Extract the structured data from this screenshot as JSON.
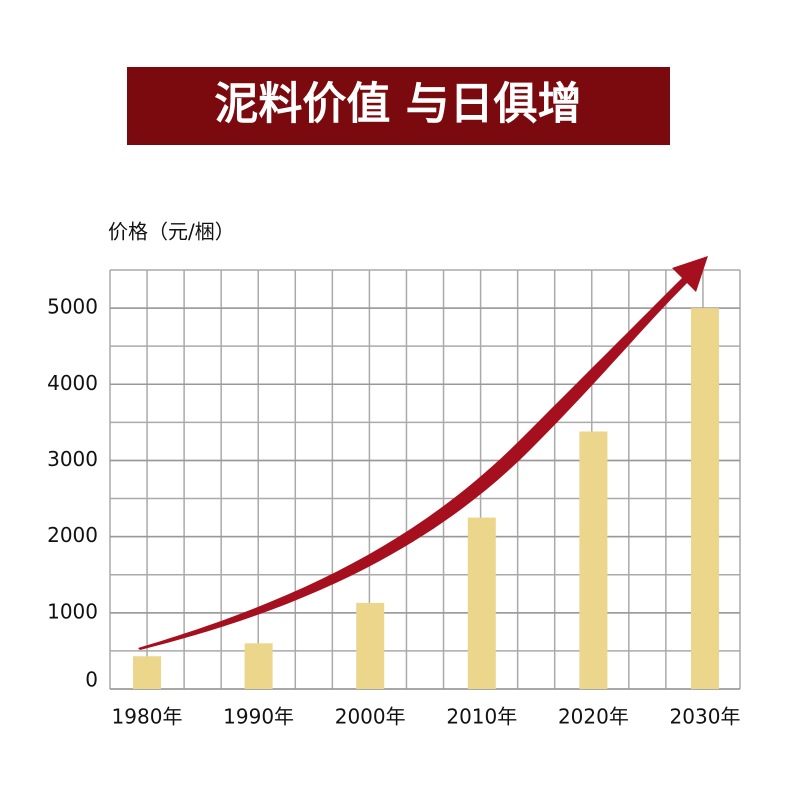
{
  "chart_data": {
    "type": "bar",
    "title": "泥料价值 与日俱增",
    "y_label": "价格（元/梱）",
    "categories": [
      "1980年",
      "1990年",
      "2000年",
      "2010年",
      "2020年",
      "2030年"
    ],
    "values": [
      430,
      600,
      1130,
      2250,
      3380,
      5000
    ],
    "color": "#ecd68c",
    "ylim": [
      0,
      5500
    ],
    "yticks": [
      0,
      1000,
      2000,
      3000,
      4000,
      5000
    ],
    "grid": true
  }
}
